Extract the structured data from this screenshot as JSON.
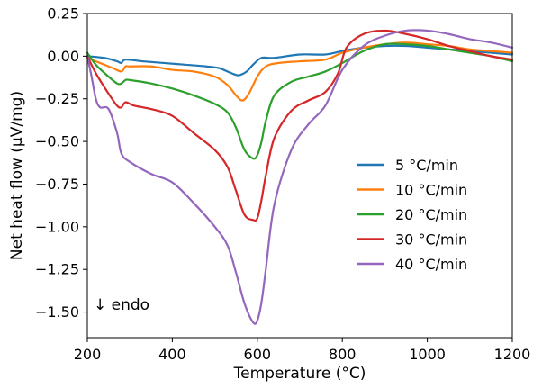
{
  "chart_data": {
    "type": "line",
    "xlabel": "Temperature (°C)",
    "ylabel": "Net heat flow (μV/mg)",
    "xlim": [
      200,
      1200
    ],
    "ylim": [
      -1.65,
      0.25
    ],
    "xticks": [
      "200",
      "400",
      "600",
      "800",
      "1000",
      "1200"
    ],
    "xtick_values": [
      200,
      400,
      600,
      800,
      1000,
      1200
    ],
    "yticks": [
      "0.25",
      "0.00",
      "−0.25",
      "−0.50",
      "−0.75",
      "−1.00",
      "−1.25",
      "−1.50"
    ],
    "ytick_values": [
      0.25,
      0.0,
      -0.25,
      -0.5,
      -0.75,
      -1.0,
      -1.25,
      -1.5
    ],
    "grid": false,
    "legend_position": "center-right",
    "annotation": "↓ endo",
    "series": [
      {
        "name": "5 °C/min",
        "color": "#1f77b4",
        "x": [
          200,
          240,
          270,
          280,
          290,
          330,
          380,
          430,
          480,
          510,
          530,
          550,
          560,
          575,
          590,
          610,
          640,
          700,
          760,
          800,
          850,
          900,
          950,
          1000,
          1050,
          1100,
          1150,
          1200
        ],
        "y": [
          0.0,
          -0.01,
          -0.03,
          -0.04,
          -0.02,
          -0.03,
          -0.04,
          -0.05,
          -0.06,
          -0.07,
          -0.09,
          -0.11,
          -0.11,
          -0.09,
          -0.05,
          -0.01,
          -0.01,
          0.01,
          0.01,
          0.03,
          0.05,
          0.06,
          0.06,
          0.05,
          0.04,
          0.03,
          0.02,
          0.01
        ]
      },
      {
        "name": "10 °C/min",
        "color": "#ff7f0e",
        "x": [
          200,
          230,
          260,
          280,
          290,
          300,
          350,
          400,
          450,
          500,
          530,
          550,
          565,
          580,
          600,
          620,
          650,
          700,
          760,
          800,
          850,
          900,
          950,
          1000,
          1050,
          1100,
          1150,
          1200
        ],
        "y": [
          -0.01,
          -0.04,
          -0.07,
          -0.09,
          -0.06,
          -0.06,
          -0.06,
          -0.08,
          -0.09,
          -0.12,
          -0.17,
          -0.23,
          -0.26,
          -0.22,
          -0.12,
          -0.06,
          -0.04,
          -0.03,
          -0.02,
          0.02,
          0.05,
          0.07,
          0.08,
          0.07,
          0.06,
          0.04,
          0.03,
          0.02
        ]
      },
      {
        "name": "20 °C/min",
        "color": "#2ca02c",
        "x": [
          200,
          220,
          250,
          270,
          280,
          290,
          300,
          350,
          400,
          450,
          500,
          530,
          550,
          570,
          590,
          600,
          610,
          620,
          640,
          680,
          720,
          760,
          800,
          850,
          900,
          950,
          1000,
          1050,
          1100,
          1150,
          1200
        ],
        "y": [
          0.02,
          -0.05,
          -0.12,
          -0.16,
          -0.16,
          -0.14,
          -0.14,
          -0.16,
          -0.19,
          -0.23,
          -0.28,
          -0.33,
          -0.42,
          -0.55,
          -0.6,
          -0.58,
          -0.5,
          -0.38,
          -0.23,
          -0.15,
          -0.12,
          -0.09,
          -0.04,
          0.03,
          0.07,
          0.07,
          0.06,
          0.04,
          0.02,
          0.0,
          -0.03
        ]
      },
      {
        "name": "30 °C/min",
        "color": "#d62728",
        "x": [
          200,
          220,
          250,
          270,
          280,
          290,
          310,
          350,
          400,
          450,
          500,
          530,
          550,
          570,
          590,
          600,
          610,
          620,
          640,
          680,
          720,
          760,
          790,
          810,
          850,
          900,
          950,
          1000,
          1050,
          1100,
          1150,
          1200
        ],
        "y": [
          0.0,
          -0.1,
          -0.22,
          -0.29,
          -0.3,
          -0.27,
          -0.29,
          -0.31,
          -0.35,
          -0.45,
          -0.55,
          -0.65,
          -0.79,
          -0.93,
          -0.96,
          -0.95,
          -0.84,
          -0.7,
          -0.48,
          -0.32,
          -0.26,
          -0.21,
          -0.1,
          0.05,
          0.13,
          0.15,
          0.13,
          0.1,
          0.06,
          0.03,
          0.0,
          -0.02
        ]
      },
      {
        "name": "40 °C/min",
        "color": "#9467bd",
        "x": [
          200,
          210,
          220,
          230,
          250,
          270,
          280,
          300,
          350,
          400,
          450,
          500,
          530,
          550,
          570,
          590,
          600,
          610,
          620,
          640,
          680,
          720,
          760,
          800,
          850,
          900,
          950,
          1000,
          1050,
          1100,
          1150,
          1200
        ],
        "y": [
          0.0,
          -0.12,
          -0.25,
          -0.3,
          -0.31,
          -0.45,
          -0.57,
          -0.62,
          -0.69,
          -0.74,
          -0.86,
          -1.0,
          -1.11,
          -1.27,
          -1.45,
          -1.56,
          -1.55,
          -1.44,
          -1.25,
          -0.87,
          -0.55,
          -0.4,
          -0.29,
          -0.08,
          0.06,
          0.12,
          0.15,
          0.15,
          0.13,
          0.1,
          0.08,
          0.05
        ]
      }
    ]
  }
}
